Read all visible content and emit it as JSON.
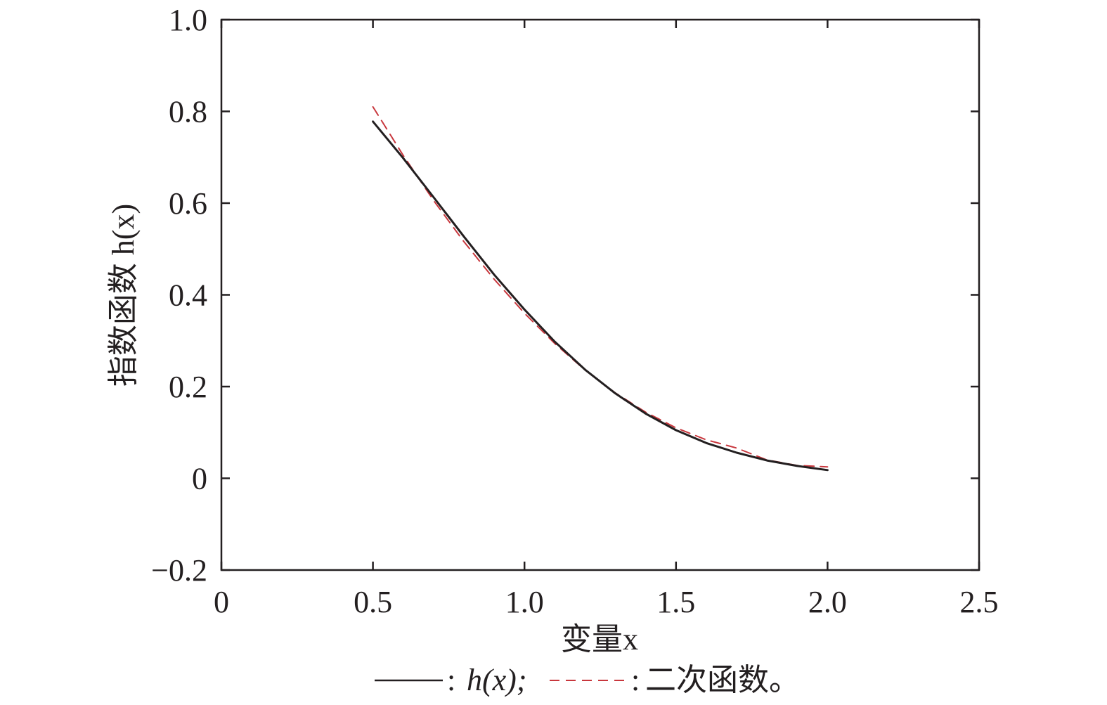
{
  "chart_data": {
    "type": "line",
    "xlabel": "变量x",
    "ylabel": "指数函数 h(x)",
    "xlim": [
      0,
      2.5
    ],
    "ylim": [
      -0.2,
      1.0
    ],
    "xticks": [
      0,
      0.5,
      1.0,
      1.5,
      2.0,
      2.5
    ],
    "xtick_labels": [
      "0",
      "0.5",
      "1.0",
      "1.5",
      "2.0",
      "2.5"
    ],
    "yticks": [
      -0.2,
      0,
      0.2,
      0.4,
      0.6,
      0.8,
      1.0
    ],
    "ytick_labels": [
      "−0.2",
      "0",
      "0.2",
      "0.4",
      "0.6",
      "0.8",
      "1.0"
    ],
    "grid": false,
    "legend_position": "bottom",
    "legend_text": "h(x); ",
    "legend_text2": "二次函数。",
    "series": [
      {
        "name": "h(x)",
        "color": "#231f20",
        "style": "solid",
        "x": [
          0.5,
          0.6,
          0.7,
          0.8,
          0.9,
          1.0,
          1.1,
          1.2,
          1.3,
          1.4,
          1.5,
          1.6,
          1.7,
          1.8,
          1.9,
          2.0
        ],
        "y": [
          0.778,
          0.698,
          0.613,
          0.527,
          0.444,
          0.368,
          0.298,
          0.237,
          0.185,
          0.141,
          0.105,
          0.077,
          0.056,
          0.039,
          0.027,
          0.018
        ]
      },
      {
        "name": "二次函数",
        "color": "#c8373d",
        "style": "dashed",
        "x": [
          0.5,
          0.6,
          0.7,
          0.8,
          0.9,
          1.0,
          1.1,
          1.2,
          1.3,
          1.4,
          1.5,
          1.6,
          1.7,
          1.8,
          1.9,
          2.0
        ],
        "y": [
          0.81,
          0.704,
          0.606,
          0.516,
          0.434,
          0.36,
          0.294,
          0.236,
          0.186,
          0.144,
          0.11,
          0.084,
          0.066,
          0.04,
          0.028,
          0.025
        ]
      }
    ]
  }
}
